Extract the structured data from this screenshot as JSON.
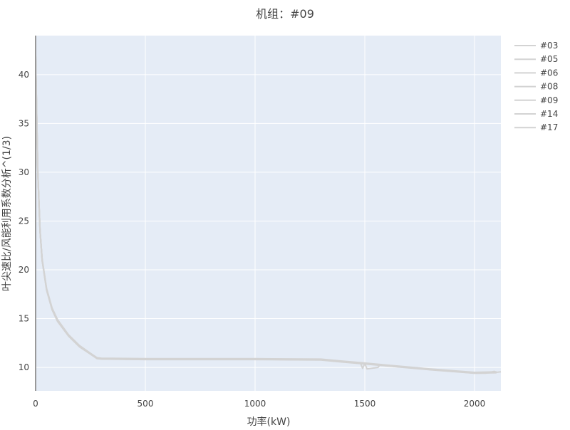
{
  "chart_data": {
    "type": "line",
    "title": "机组：#09",
    "xlabel": "功率(kW)",
    "ylabel": "叶尖速比/风能利用系数分析^(1/3)",
    "xlim": [
      0,
      2120
    ],
    "ylim": [
      7.6,
      44
    ],
    "x_ticks": [
      0,
      500,
      1000,
      1500,
      2000
    ],
    "y_ticks": [
      10,
      15,
      20,
      25,
      30,
      35,
      40
    ],
    "grid": true,
    "legend_placement": "top-right",
    "colors": {
      "plot_bg": "#e5ecf6",
      "grid": "#ffffff",
      "line": "#d3d3d3",
      "axis": "#999999"
    },
    "series": [
      {
        "name": "#03",
        "x": [
          0,
          5,
          10,
          20,
          30,
          50,
          75,
          100,
          150,
          200,
          250,
          280,
          300,
          500,
          1000,
          1300,
          1400,
          1500,
          1600,
          1800,
          2000,
          2100
        ],
        "y": [
          42,
          36,
          30,
          24,
          21,
          18,
          16,
          14.8,
          13.3,
          12.2,
          11.4,
          10.95,
          10.9,
          10.85,
          10.85,
          10.8,
          10.6,
          10.4,
          10.2,
          9.8,
          9.45,
          9.5
        ]
      },
      {
        "name": "#05",
        "x": [
          0,
          5,
          10,
          20,
          30,
          50,
          75,
          100,
          150,
          200,
          250,
          280,
          300,
          500,
          1000,
          1300,
          1400,
          1500,
          1600,
          1800,
          2000,
          2100
        ],
        "y": [
          41.8,
          35.8,
          29.8,
          23.9,
          20.9,
          17.9,
          15.9,
          14.7,
          13.2,
          12.1,
          11.35,
          10.9,
          10.85,
          10.8,
          10.8,
          10.75,
          10.55,
          10.35,
          10.15,
          9.75,
          9.4,
          9.45
        ]
      },
      {
        "name": "#06",
        "x": [
          0,
          5,
          10,
          20,
          30,
          50,
          75,
          100,
          150,
          200,
          250,
          280,
          300,
          500,
          1000,
          1300,
          1400,
          1500,
          1600,
          1800,
          2000,
          2100
        ],
        "y": [
          42,
          36.1,
          30.1,
          24.1,
          21.1,
          18.1,
          16.1,
          14.9,
          13.35,
          12.25,
          11.45,
          11,
          10.95,
          10.9,
          10.9,
          10.85,
          10.65,
          10.45,
          10.25,
          9.85,
          9.5,
          9.55
        ]
      },
      {
        "name": "#08",
        "x": [
          0,
          5,
          10,
          20,
          30,
          50,
          75,
          100,
          150,
          200,
          250,
          280,
          300,
          500,
          1000,
          1300,
          1400,
          1500,
          1600,
          1800,
          2000,
          2100
        ],
        "y": [
          42,
          36,
          30,
          24,
          21,
          18,
          16,
          14.8,
          13.3,
          12.2,
          11.4,
          10.95,
          10.88,
          10.83,
          10.83,
          10.78,
          10.58,
          10.38,
          10.18,
          9.78,
          9.43,
          9.48
        ]
      },
      {
        "name": "#09",
        "x": [
          0,
          5,
          10,
          20,
          30,
          50,
          75,
          100,
          150,
          200,
          250,
          280,
          300,
          500,
          1000,
          1300,
          1400,
          1480,
          1490,
          1500,
          1510,
          1560,
          1570,
          1600,
          1800,
          2000,
          2050,
          2090,
          2100,
          2120
        ],
        "y": [
          42,
          36,
          30,
          24,
          21,
          18,
          16,
          14.8,
          13.3,
          12.2,
          11.4,
          10.95,
          10.9,
          10.85,
          10.85,
          10.8,
          10.6,
          10.45,
          9.9,
          10.4,
          9.85,
          10,
          10.3,
          10.2,
          9.8,
          9.4,
          9.4,
          9.6,
          9.5,
          9.55
        ]
      },
      {
        "name": "#14",
        "x": [
          0,
          5,
          10,
          20,
          30,
          50,
          75,
          100,
          150,
          200,
          250,
          280,
          300,
          500,
          1000,
          1300,
          1400,
          1500,
          1600,
          1800,
          2000,
          2100
        ],
        "y": [
          41.9,
          35.9,
          29.9,
          23.95,
          20.95,
          17.95,
          15.95,
          14.75,
          13.25,
          12.15,
          11.38,
          10.93,
          10.87,
          10.82,
          10.82,
          10.77,
          10.57,
          10.37,
          10.17,
          9.77,
          9.42,
          9.47
        ]
      },
      {
        "name": "#17",
        "x": [
          0,
          5,
          10,
          20,
          30,
          50,
          75,
          100,
          150,
          200,
          250,
          280,
          300,
          500,
          1000,
          1300,
          1400,
          1500,
          1600,
          1800,
          2000,
          2100
        ],
        "y": [
          42,
          36,
          30,
          24,
          21,
          18,
          16,
          14.8,
          13.3,
          12.2,
          11.4,
          10.97,
          10.92,
          10.87,
          10.87,
          10.82,
          10.62,
          10.42,
          10.22,
          9.82,
          9.47,
          9.52
        ]
      }
    ]
  }
}
